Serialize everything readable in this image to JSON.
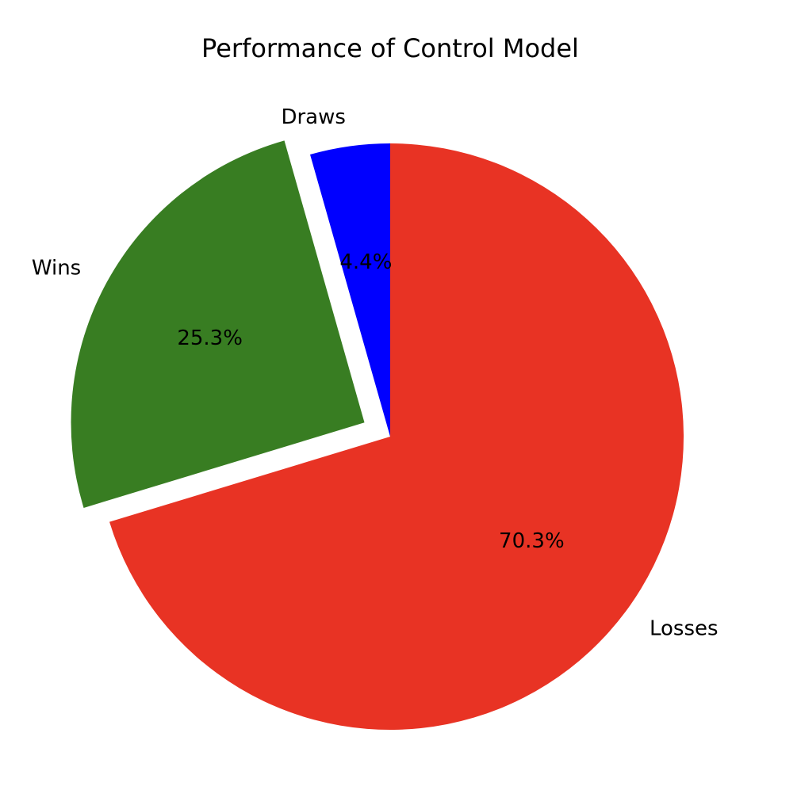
{
  "chart_data": {
    "type": "pie",
    "title": "Performance of Control Model",
    "start_angle_deg": 90,
    "direction": "counterclockwise",
    "slices": [
      {
        "label": "Draws",
        "percent_label": "4.4%",
        "value": 4.4,
        "color": "#0000ff",
        "exploded": false
      },
      {
        "label": "Wins",
        "percent_label": "25.3%",
        "value": 25.3,
        "color": "#387d22",
        "exploded": true
      },
      {
        "label": "Losses",
        "percent_label": "70.3%",
        "value": 70.3,
        "color": "#e83324",
        "exploded": false
      }
    ]
  }
}
